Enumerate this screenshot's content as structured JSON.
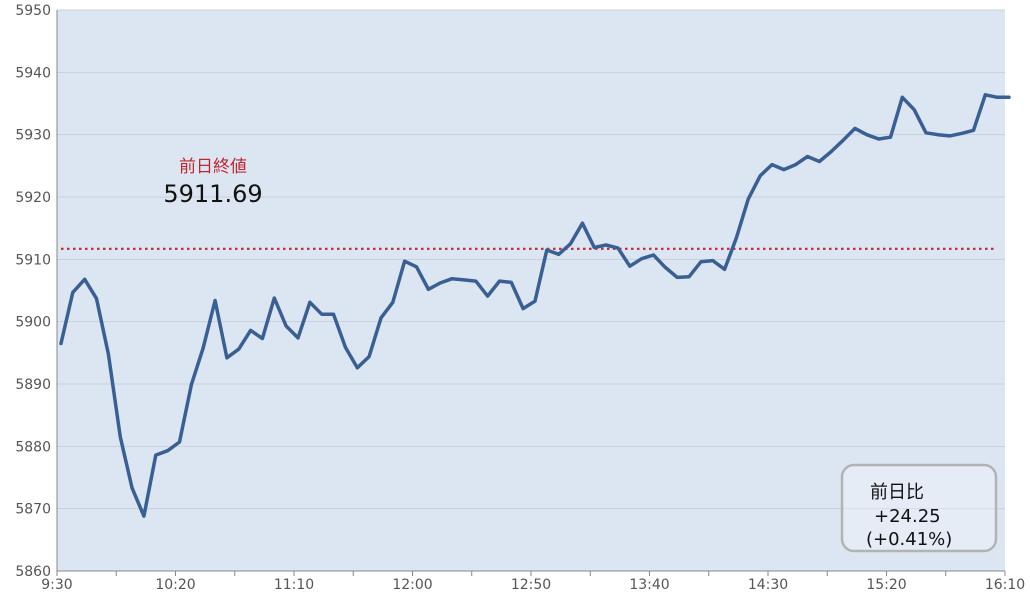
{
  "chart_data": {
    "type": "line",
    "title": "",
    "xlabel": "",
    "ylabel": "",
    "ylim": [
      5860,
      5950
    ],
    "y_ticks": [
      5860,
      5870,
      5880,
      5890,
      5900,
      5910,
      5920,
      5930,
      5940,
      5950
    ],
    "x_tick_labels": [
      "9:30",
      "10:20",
      "11:10",
      "12:00",
      "12:50",
      "13:40",
      "14:30",
      "15:20",
      "16:10"
    ],
    "x_range_minutes": [
      0,
      400
    ],
    "grid": true,
    "colors": {
      "line": "#3a5f94",
      "plot_bg": "#dce6f2",
      "reference": "#c0272d"
    },
    "series": [
      {
        "x": [
          0,
          5,
          10,
          15,
          20,
          25,
          30,
          35,
          40,
          45,
          50,
          55,
          60,
          65,
          70,
          75,
          80,
          85,
          90,
          95,
          100,
          105,
          110,
          115,
          120,
          125,
          130,
          135,
          140,
          145,
          150,
          155,
          160,
          165,
          170,
          175,
          180,
          185,
          190,
          195,
          200,
          205,
          210,
          215,
          220,
          225,
          230,
          235,
          240,
          245,
          250,
          255,
          260,
          265,
          270,
          275,
          280,
          285,
          290,
          295,
          300,
          305,
          310,
          315,
          320,
          325,
          330,
          335,
          340,
          345,
          350,
          355,
          360,
          365,
          370,
          375,
          380,
          385,
          390,
          395,
          400
        ],
        "values": [
          5896.5,
          5904.7,
          5906.8,
          5903.7,
          5894.8,
          5881.5,
          5873.3,
          5868.8,
          5878.6,
          5879.3,
          5880.7,
          5889.9,
          5895.8,
          5903.4,
          5894.2,
          5895.6,
          5898.6,
          5897.3,
          5903.8,
          5899.3,
          5897.4,
          5903.1,
          5901.2,
          5901.2,
          5895.9,
          5892.6,
          5894.4,
          5900.6,
          5903.1,
          5909.7,
          5908.8,
          5905.2,
          5906.2,
          5906.9,
          5906.7,
          5906.5,
          5904.1,
          5906.5,
          5906.3,
          5902.1,
          5903.3,
          5911.5,
          5910.8,
          5912.5,
          5915.8,
          5911.9,
          5912.3,
          5911.8,
          5908.9,
          5910.1,
          5910.7,
          5908.7,
          5907.1,
          5907.2,
          5909.6,
          5909.8,
          5908.4,
          5913.5,
          5919.7,
          5923.4,
          5925.2,
          5924.4,
          5925.2,
          5926.5,
          5925.7,
          5927.3,
          5929.1,
          5931.0,
          5930.0,
          5929.3,
          5929.6,
          5936.0,
          5934.0,
          5930.3,
          5930.0,
          5929.8,
          5930.2,
          5930.7,
          5936.4,
          5936.0,
          5936.0
        ]
      }
    ],
    "reference_line": {
      "value": 5911.69,
      "label": "前日終値",
      "value_text": "5911.69"
    },
    "change_box": {
      "label": "前日比",
      "value": "+24.25",
      "percent": "(+0.41%)"
    }
  }
}
